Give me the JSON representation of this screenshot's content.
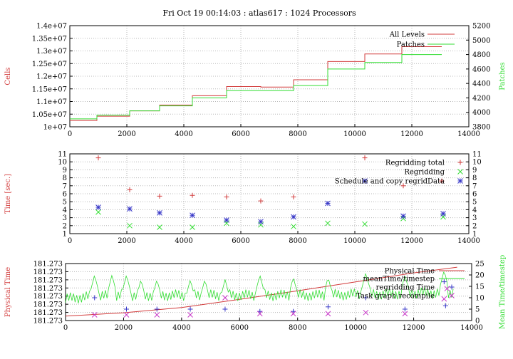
{
  "title": "Fri Oct 19 00:14:03 : atlas617 : 1024 Processors",
  "colors": {
    "red": "#d23b3b",
    "green": "#33dd33",
    "blue": "#3838c8",
    "magenta": "#c838c8",
    "grid": "#b8b8b8"
  },
  "chart_data": [
    {
      "type": "line",
      "ylabel": "Cells",
      "y2label": "Patches",
      "xlim": [
        0,
        14000
      ],
      "ylim": [
        10000000,
        14000000
      ],
      "y2lim": [
        3800,
        5200
      ],
      "xticks": [
        "0",
        "2000",
        "4000",
        "6000",
        "8000",
        "10000",
        "12000",
        "14000"
      ],
      "yticks": [
        "1e+07",
        "1.05e+07",
        "1.1e+07",
        "1.15e+07",
        "1.2e+07",
        "1.25e+07",
        "1.3e+07",
        "1.35e+07",
        "1.4e+07"
      ],
      "y2ticks": [
        "3800",
        "4000",
        "4200",
        "4400",
        "4600",
        "4800",
        "5000",
        "5200"
      ],
      "series": [
        {
          "name": "All Levels",
          "axis": "y",
          "color": "red",
          "style": "step",
          "x": [
            0,
            950,
            2100,
            3150,
            4300,
            5500,
            6700,
            7850,
            9050,
            10350,
            11650,
            13050
          ],
          "y": [
            10250000,
            10420000,
            10630000,
            10860000,
            11230000,
            11590000,
            11570000,
            11860000,
            12580000,
            12880000,
            13170000,
            13170000
          ]
        },
        {
          "name": "Patches",
          "axis": "y2",
          "color": "green",
          "style": "step",
          "x": [
            0,
            950,
            2100,
            3150,
            4300,
            5500,
            6700,
            7850,
            9050,
            10350,
            11650,
            13050
          ],
          "y": [
            3910,
            3960,
            4020,
            4090,
            4200,
            4300,
            4300,
            4370,
            4600,
            4690,
            4800,
            4800
          ]
        }
      ]
    },
    {
      "type": "scatter",
      "ylabel": "Time [sec.]",
      "xlim": [
        0,
        14000
      ],
      "ylim": [
        1,
        11
      ],
      "xticks": [
        "0",
        "2000",
        "4000",
        "6000",
        "8000",
        "10000",
        "12000",
        "14000"
      ],
      "yticks": [
        "1",
        "2",
        "3",
        "4",
        "5",
        "6",
        "7",
        "8",
        "9",
        "10",
        "11"
      ],
      "series": [
        {
          "name": "Regridding total",
          "color": "red",
          "marker": "+",
          "x": [
            1000,
            2100,
            3150,
            4300,
            5500,
            6700,
            7850,
            10350,
            11700,
            13050
          ],
          "y": [
            10.5,
            6.5,
            5.7,
            5.8,
            5.6,
            5.1,
            5.6,
            10.5,
            7.0,
            7.6
          ]
        },
        {
          "name": "Regridding",
          "color": "green",
          "marker": "x",
          "x": [
            1000,
            2100,
            3150,
            4300,
            5500,
            6700,
            7850,
            9050,
            10350,
            11700,
            13100
          ],
          "y": [
            3.7,
            2.0,
            1.8,
            1.8,
            2.3,
            2.1,
            1.9,
            2.3,
            2.2,
            2.9,
            3.1
          ]
        },
        {
          "name": "Schedule and copy regridData",
          "color": "blue",
          "marker": "*",
          "x": [
            1000,
            2100,
            3150,
            4300,
            5500,
            6700,
            7850,
            9050,
            10350,
            11700,
            13100
          ],
          "y": [
            4.3,
            4.1,
            3.6,
            3.3,
            2.7,
            2.5,
            3.1,
            4.8,
            7.6,
            3.2,
            3.5
          ]
        }
      ]
    },
    {
      "type": "line",
      "ylabel": "Physical Time",
      "y2label": "Mean Time/timestep",
      "xlim": [
        0,
        14000
      ],
      "ylim": [
        0,
        7
      ],
      "y2lim": [
        0,
        25
      ],
      "xticks": [
        "0",
        "2000",
        "4000",
        "6000",
        "8000",
        "10000",
        "12000",
        "14000"
      ],
      "yticks": [
        "181.273",
        "181.273",
        "181.273",
        "181.273",
        "181.273",
        "181.273",
        "181.273",
        "181.273"
      ],
      "y2ticks": [
        "0",
        "5",
        "10",
        "15",
        "20",
        "25"
      ],
      "series": [
        {
          "name": "Physical Time",
          "axis": "y",
          "color": "red",
          "style": "line",
          "x": [
            0,
            2000,
            4000,
            6000,
            8000,
            10000,
            12000,
            13500
          ],
          "y": [
            0.55,
            0.95,
            1.6,
            2.6,
            3.65,
            4.75,
            5.85,
            6.55
          ]
        },
        {
          "name": "meanTime/timestep",
          "axis": "y2",
          "color": "green",
          "style": "noisy",
          "base_x": [
            0,
            1000,
            2000,
            3000,
            4000,
            5000,
            6000,
            7000,
            8000,
            9000,
            10000,
            11000,
            12000,
            13000,
            13400
          ],
          "base_y": [
            9.5,
            10.5,
            11.0,
            11.0,
            11.0,
            11.0,
            11.0,
            11.0,
            11.0,
            11.0,
            11.5,
            11.5,
            12.0,
            12.0,
            12.5
          ],
          "spike_x": [
            1000,
            1600,
            2100,
            2600,
            3150,
            4300,
            4800,
            5500,
            6700,
            7850,
            9050,
            10350,
            11700,
            13050
          ],
          "spike_y": [
            20,
            20,
            20,
            18,
            18,
            18,
            18,
            18,
            20,
            19,
            19,
            21,
            20,
            22
          ]
        },
        {
          "name": "regridding Time",
          "axis": "y2",
          "color": "blue",
          "marker": "+",
          "x": [
            1000,
            2100,
            3150,
            4300,
            5500,
            6700,
            7850,
            9050,
            10350,
            11700,
            13050,
            13100
          ],
          "y": [
            10.0,
            5.0,
            5.0,
            5.0,
            5.0,
            4.0,
            4.0,
            6.0,
            10.0,
            5.0,
            17.0,
            6.5
          ]
        },
        {
          "name": "Task graph recompile",
          "axis": "y2",
          "color": "magenta",
          "marker": "x",
          "x": [
            1000,
            2100,
            3150,
            4300,
            5500,
            6700,
            7850,
            9050,
            10350,
            11700,
            13050,
            13150
          ],
          "y": [
            2.5,
            2.5,
            2.5,
            2.5,
            10.0,
            3.0,
            3.0,
            3.0,
            3.5,
            3.0,
            9.5,
            14.0
          ]
        }
      ]
    }
  ]
}
